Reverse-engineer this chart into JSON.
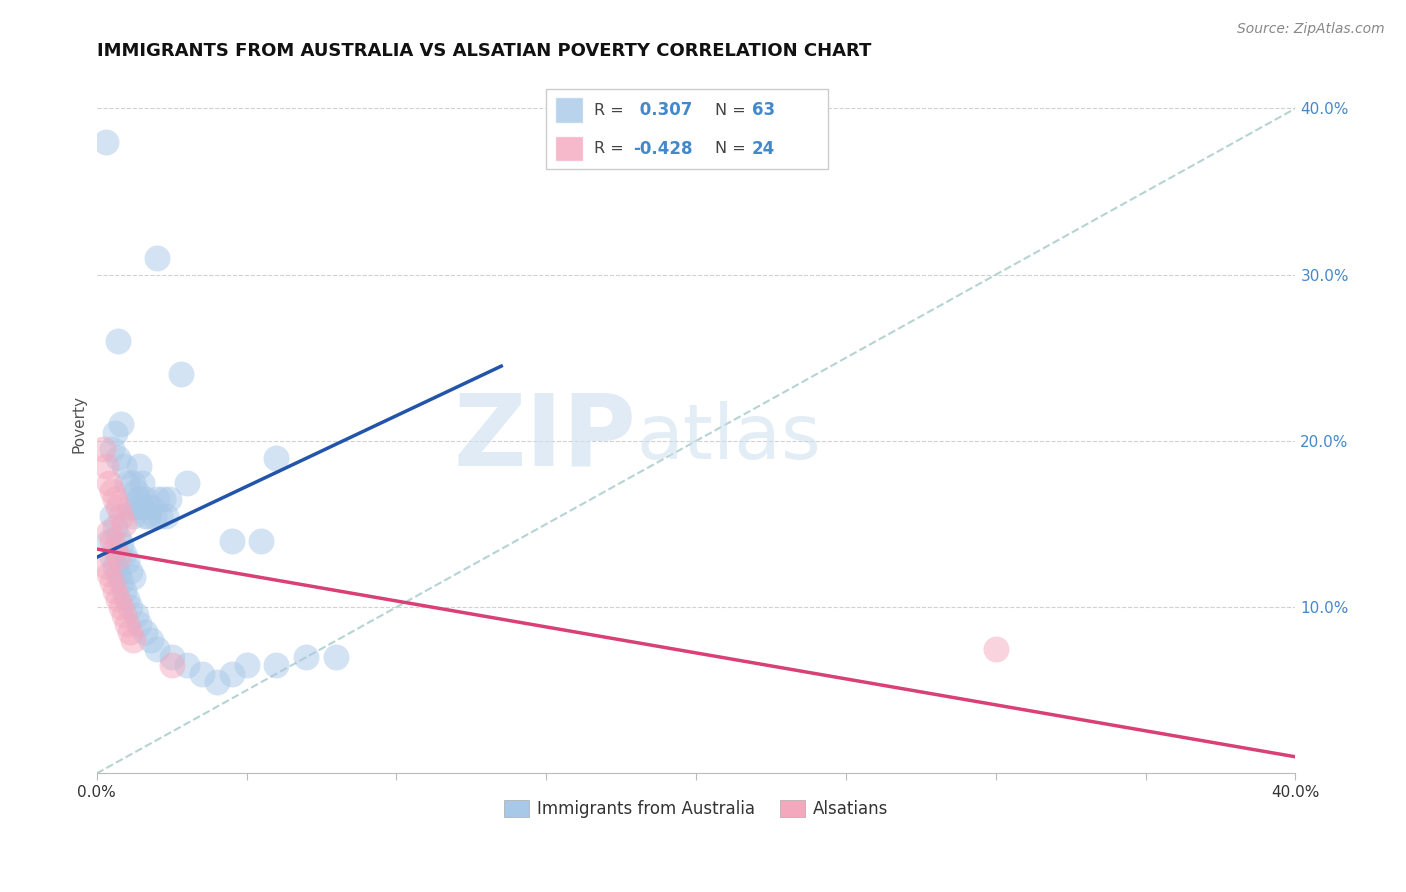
{
  "title": "IMMIGRANTS FROM AUSTRALIA VS ALSATIAN POVERTY CORRELATION CHART",
  "source_text": "Source: ZipAtlas.com",
  "ylabel": "Poverty",
  "xlim": [
    0.0,
    0.4
  ],
  "ylim": [
    0.0,
    0.42
  ],
  "xticks": [
    0.0,
    0.05,
    0.1,
    0.15,
    0.2,
    0.25,
    0.3,
    0.35,
    0.4
  ],
  "xtick_labels": [
    "0.0%",
    "",
    "",
    "",
    "",
    "",
    "",
    "",
    "40.0%"
  ],
  "yticks": [
    0.0,
    0.1,
    0.2,
    0.3,
    0.4
  ],
  "ytick_labels_right": [
    "",
    "10.0%",
    "20.0%",
    "30.0%",
    "40.0%"
  ],
  "r_blue": 0.307,
  "n_blue": 63,
  "r_pink": -0.428,
  "n_pink": 24,
  "blue_color": "#a8c8e8",
  "pink_color": "#f4a8be",
  "blue_line_color": "#2255aa",
  "pink_line_color": "#d94075",
  "dashed_line_color": "#aacccc",
  "legend_label_blue": "Immigrants from Australia",
  "legend_label_pink": "Alsatians",
  "watermark_zip": "ZIP",
  "watermark_atlas": "atlas",
  "grid_color": "#cccccc",
  "background_color": "#ffffff",
  "title_fontsize": 13,
  "axis_label_fontsize": 11,
  "tick_fontsize": 11,
  "right_ytick_color": "#4488cc",
  "blue_dots": [
    [
      0.003,
      0.38
    ],
    [
      0.005,
      0.195
    ],
    [
      0.007,
      0.26
    ],
    [
      0.006,
      0.205
    ],
    [
      0.007,
      0.19
    ],
    [
      0.008,
      0.21
    ],
    [
      0.009,
      0.185
    ],
    [
      0.01,
      0.175
    ],
    [
      0.011,
      0.16
    ],
    [
      0.012,
      0.155
    ],
    [
      0.013,
      0.16
    ],
    [
      0.012,
      0.175
    ],
    [
      0.013,
      0.17
    ],
    [
      0.014,
      0.185
    ],
    [
      0.015,
      0.175
    ],
    [
      0.014,
      0.165
    ],
    [
      0.015,
      0.16
    ],
    [
      0.016,
      0.155
    ],
    [
      0.016,
      0.165
    ],
    [
      0.017,
      0.155
    ],
    [
      0.018,
      0.16
    ],
    [
      0.019,
      0.155
    ],
    [
      0.02,
      0.165
    ],
    [
      0.021,
      0.155
    ],
    [
      0.022,
      0.165
    ],
    [
      0.023,
      0.155
    ],
    [
      0.024,
      0.165
    ],
    [
      0.005,
      0.155
    ],
    [
      0.006,
      0.148
    ],
    [
      0.007,
      0.142
    ],
    [
      0.008,
      0.138
    ],
    [
      0.009,
      0.132
    ],
    [
      0.01,
      0.128
    ],
    [
      0.011,
      0.122
    ],
    [
      0.012,
      0.118
    ],
    [
      0.004,
      0.14
    ],
    [
      0.005,
      0.13
    ],
    [
      0.006,
      0.125
    ],
    [
      0.007,
      0.12
    ],
    [
      0.008,
      0.115
    ],
    [
      0.009,
      0.11
    ],
    [
      0.01,
      0.105
    ],
    [
      0.011,
      0.1
    ],
    [
      0.013,
      0.095
    ],
    [
      0.014,
      0.09
    ],
    [
      0.016,
      0.085
    ],
    [
      0.018,
      0.08
    ],
    [
      0.02,
      0.075
    ],
    [
      0.025,
      0.07
    ],
    [
      0.03,
      0.065
    ],
    [
      0.035,
      0.06
    ],
    [
      0.04,
      0.055
    ],
    [
      0.045,
      0.06
    ],
    [
      0.05,
      0.065
    ],
    [
      0.06,
      0.065
    ],
    [
      0.07,
      0.07
    ],
    [
      0.08,
      0.07
    ],
    [
      0.02,
      0.31
    ],
    [
      0.028,
      0.24
    ],
    [
      0.03,
      0.175
    ],
    [
      0.045,
      0.14
    ],
    [
      0.055,
      0.14
    ],
    [
      0.06,
      0.19
    ]
  ],
  "pink_dots": [
    [
      0.002,
      0.195
    ],
    [
      0.003,
      0.185
    ],
    [
      0.004,
      0.175
    ],
    [
      0.005,
      0.17
    ],
    [
      0.006,
      0.165
    ],
    [
      0.007,
      0.16
    ],
    [
      0.008,
      0.155
    ],
    [
      0.009,
      0.15
    ],
    [
      0.004,
      0.145
    ],
    [
      0.005,
      0.14
    ],
    [
      0.006,
      0.135
    ],
    [
      0.007,
      0.13
    ],
    [
      0.003,
      0.125
    ],
    [
      0.004,
      0.12
    ],
    [
      0.005,
      0.115
    ],
    [
      0.006,
      0.11
    ],
    [
      0.007,
      0.105
    ],
    [
      0.008,
      0.1
    ],
    [
      0.009,
      0.095
    ],
    [
      0.01,
      0.09
    ],
    [
      0.011,
      0.085
    ],
    [
      0.012,
      0.08
    ],
    [
      0.025,
      0.065
    ],
    [
      0.3,
      0.075
    ]
  ],
  "blue_trend_x": [
    0.0,
    0.135
  ],
  "blue_trend_y": [
    0.13,
    0.245
  ],
  "pink_trend_x": [
    0.0,
    0.4
  ],
  "pink_trend_y": [
    0.135,
    0.01
  ],
  "dashed_trend_x": [
    0.0,
    0.4
  ],
  "dashed_trend_y": [
    0.0,
    0.4
  ]
}
